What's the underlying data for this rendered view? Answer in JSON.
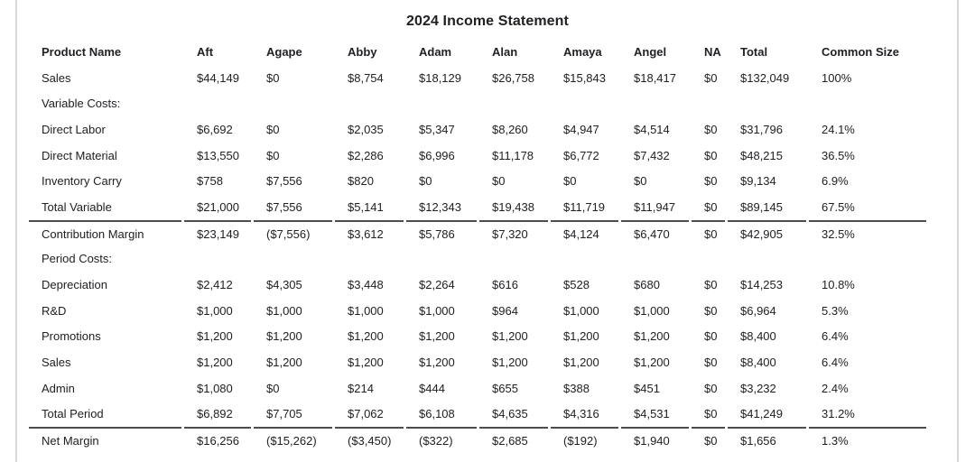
{
  "title": "2024 Income Statement",
  "table": {
    "columns": [
      "Product Name",
      "Aft",
      "Agape",
      "Abby",
      "Adam",
      "Alan",
      "Amaya",
      "Angel",
      "NA",
      "Total",
      "Common Size"
    ],
    "rows": [
      {
        "label": "Sales",
        "bold": true,
        "separator_above": false,
        "values": [
          "$44,149",
          "$0",
          "$8,754",
          "$18,129",
          "$26,758",
          "$15,843",
          "$18,417",
          "$0",
          "$132,049",
          "100%"
        ]
      },
      {
        "label": "Variable Costs:",
        "bold": true,
        "separator_above": false,
        "values": [
          "",
          "",
          "",
          "",
          "",
          "",
          "",
          "",
          "",
          ""
        ]
      },
      {
        "label": "Direct Labor",
        "bold": false,
        "separator_above": false,
        "values": [
          "$6,692",
          "$0",
          "$2,035",
          "$5,347",
          "$8,260",
          "$4,947",
          "$4,514",
          "$0",
          "$31,796",
          "24.1%"
        ]
      },
      {
        "label": "Direct Material",
        "bold": false,
        "separator_above": false,
        "values": [
          "$13,550",
          "$0",
          "$2,286",
          "$6,996",
          "$11,178",
          "$6,772",
          "$7,432",
          "$0",
          "$48,215",
          "36.5%"
        ]
      },
      {
        "label": "Inventory Carry",
        "bold": false,
        "separator_above": false,
        "values": [
          "$758",
          "$7,556",
          "$820",
          "$0",
          "$0",
          "$0",
          "$0",
          "$0",
          "$9,134",
          "6.9%"
        ]
      },
      {
        "label": "Total Variable",
        "bold": false,
        "separator_above": false,
        "values": [
          "$21,000",
          "$7,556",
          "$5,141",
          "$12,343",
          "$19,438",
          "$11,719",
          "$11,947",
          "$0",
          "$89,145",
          "67.5%"
        ]
      },
      {
        "label": "Contribution Margin",
        "bold": false,
        "separator_above": true,
        "values": [
          "$23,149",
          "($7,556)",
          "$3,612",
          "$5,786",
          "$7,320",
          "$4,124",
          "$6,470",
          "$0",
          "$42,905",
          "32.5%"
        ]
      },
      {
        "label": "Period Costs:",
        "bold": true,
        "separator_above": false,
        "values": [
          "",
          "",
          "",
          "",
          "",
          "",
          "",
          "",
          "",
          ""
        ]
      },
      {
        "label": "Depreciation",
        "bold": false,
        "separator_above": false,
        "values": [
          "$2,412",
          "$4,305",
          "$3,448",
          "$2,264",
          "$616",
          "$528",
          "$680",
          "$0",
          "$14,253",
          "10.8%"
        ]
      },
      {
        "label": "R&D",
        "bold": false,
        "separator_above": false,
        "values": [
          "$1,000",
          "$1,000",
          "$1,000",
          "$1,000",
          "$964",
          "$1,000",
          "$1,000",
          "$0",
          "$6,964",
          "5.3%"
        ]
      },
      {
        "label": "Promotions",
        "bold": false,
        "separator_above": false,
        "values": [
          "$1,200",
          "$1,200",
          "$1,200",
          "$1,200",
          "$1,200",
          "$1,200",
          "$1,200",
          "$0",
          "$8,400",
          "6.4%"
        ]
      },
      {
        "label": "Sales",
        "bold": false,
        "separator_above": false,
        "values": [
          "$1,200",
          "$1,200",
          "$1,200",
          "$1,200",
          "$1,200",
          "$1,200",
          "$1,200",
          "$0",
          "$8,400",
          "6.4%"
        ]
      },
      {
        "label": "Admin",
        "bold": false,
        "separator_above": false,
        "values": [
          "$1,080",
          "$0",
          "$214",
          "$444",
          "$655",
          "$388",
          "$451",
          "$0",
          "$3,232",
          "2.4%"
        ]
      },
      {
        "label": "Total Period",
        "bold": false,
        "separator_above": false,
        "values": [
          "$6,892",
          "$7,705",
          "$7,062",
          "$6,108",
          "$4,635",
          "$4,316",
          "$4,531",
          "$0",
          "$41,249",
          "31.2%"
        ]
      },
      {
        "label": "Net Margin",
        "bold": false,
        "separator_above": true,
        "values": [
          "$16,256",
          "($15,262)",
          "($3,450)",
          "($322)",
          "$2,685",
          "($192)",
          "$1,940",
          "$0",
          "$1,656",
          "1.3%"
        ]
      }
    ]
  },
  "colors": {
    "text": "#202124",
    "panel_border": "#d9d9d9",
    "separator_line": "#4d4d4d",
    "background": "#ffffff"
  }
}
